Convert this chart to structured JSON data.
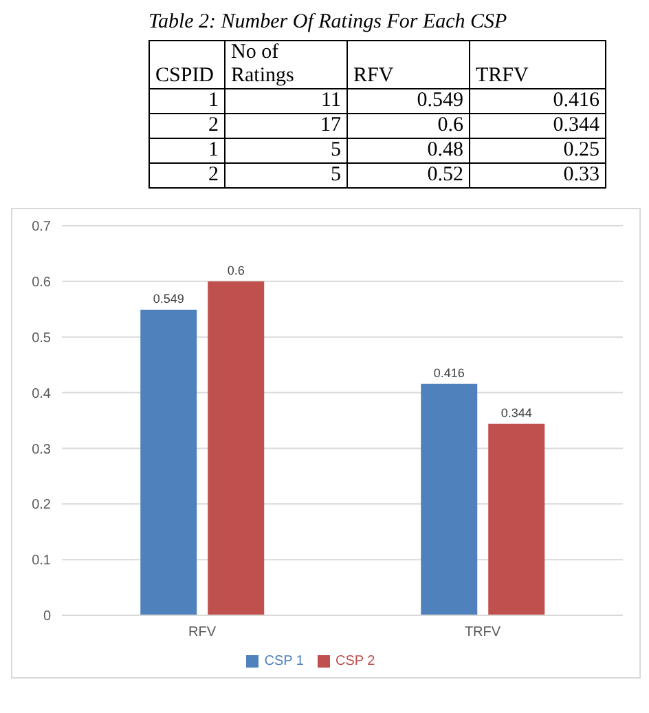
{
  "chart_data": [
    {
      "type": "other",
      "title": "Table 2: Number Of Ratings For Each CSP",
      "annotations": [
        "CSPID",
        "No of Ratings",
        "RFV",
        "TRFV",
        "1",
        "11",
        "0.549",
        "0.416",
        "2",
        "17",
        "0.6",
        "0.344",
        "1",
        "5",
        "0.48",
        "0.25",
        "2",
        "5",
        "0.52",
        "0.33"
      ]
    },
    {
      "type": "bar",
      "categories": [
        "RFV",
        "TRFV"
      ],
      "series": [
        {
          "name": "CSP 1",
          "color": "#4f81bd",
          "values": [
            0.549,
            0.416
          ]
        },
        {
          "name": "CSP 2",
          "color": "#c0504d",
          "values": [
            0.6,
            0.344
          ]
        }
      ],
      "ylim": [
        0,
        0.7
      ],
      "yticks": [
        0,
        0.1,
        0.2,
        0.3,
        0.4,
        0.5,
        0.6,
        0.7
      ],
      "grid": "y",
      "legend": "bottom",
      "data_labels": true
    }
  ]
}
